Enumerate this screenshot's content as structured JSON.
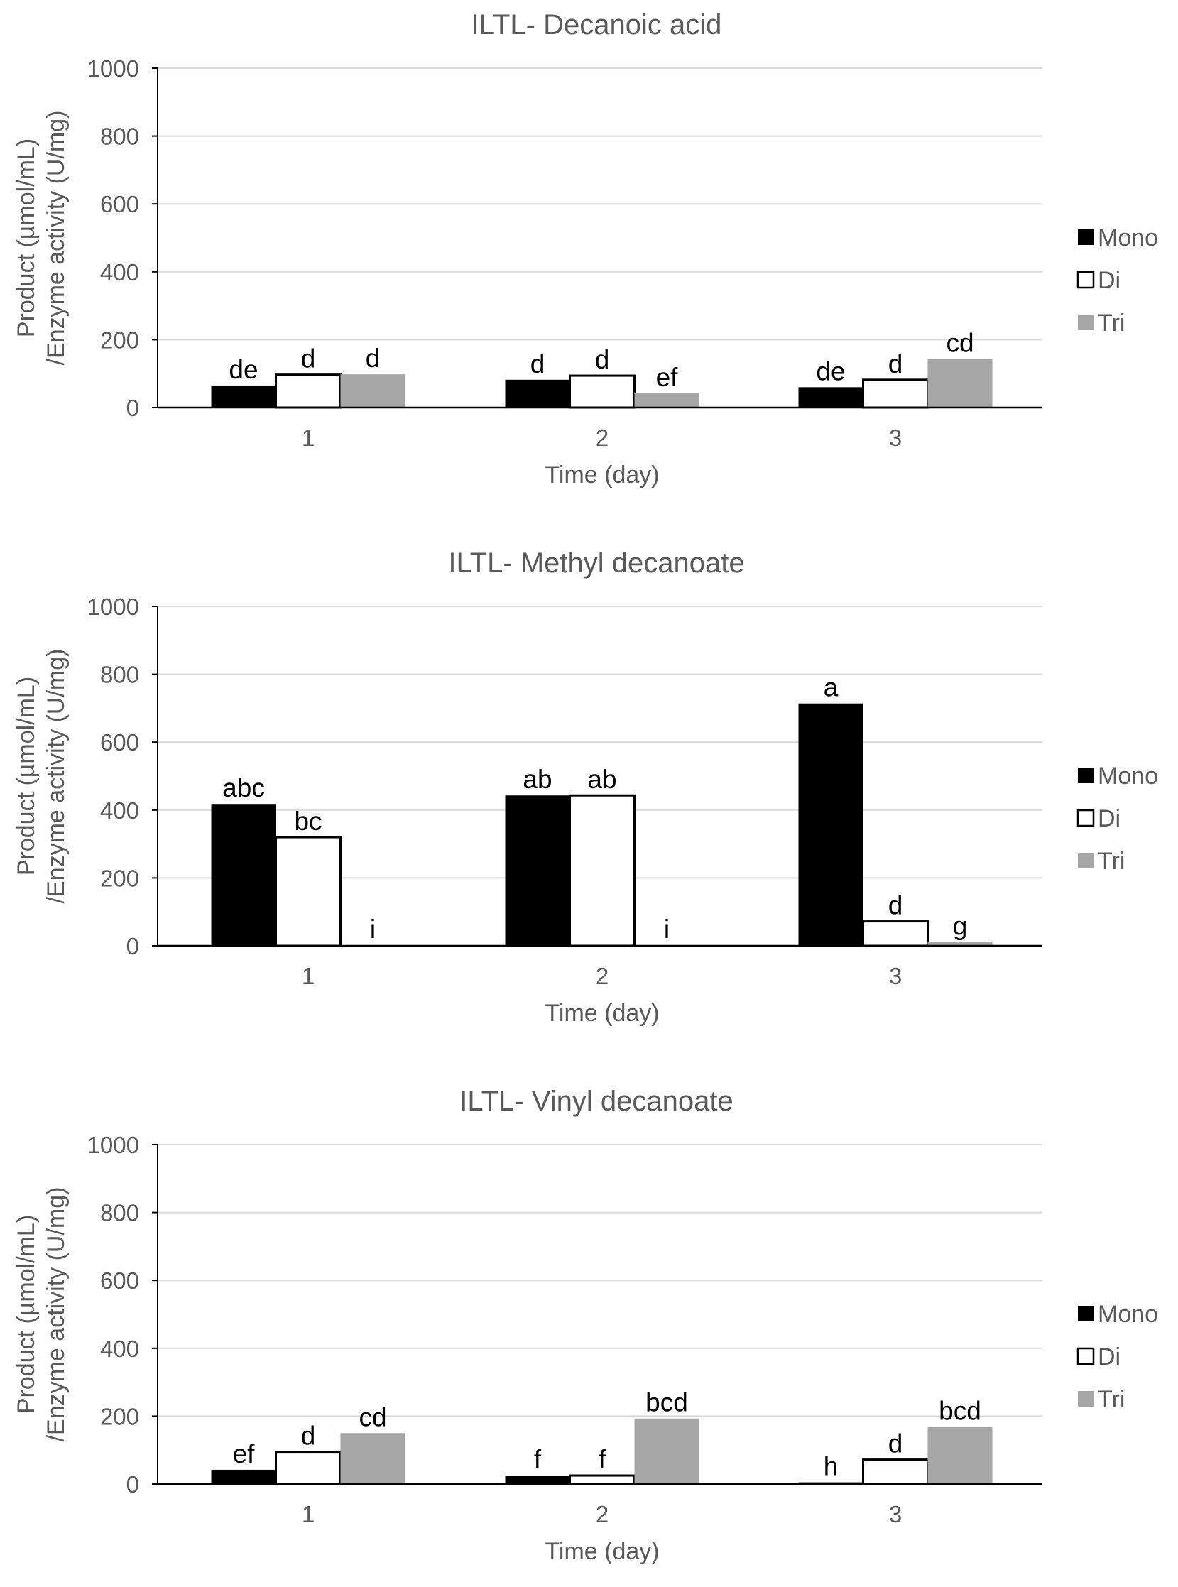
{
  "chart_data": [
    {
      "type": "bar",
      "title": "ILTL- Decanoic acid",
      "xlabel": "Time (day)",
      "ylabel": [
        "Product (µmol/mL)",
        "/Enzyme activity (U/mg)"
      ],
      "ylim": [
        0,
        1000
      ],
      "yticks": [
        0,
        200,
        400,
        600,
        800,
        1000
      ],
      "categories": [
        "1",
        "2",
        "3"
      ],
      "series": [
        {
          "name": "Mono",
          "color": "#000000",
          "values": [
            65,
            82,
            60
          ],
          "labels": [
            "de",
            "d",
            "de"
          ]
        },
        {
          "name": "Di",
          "color": "#ffffff",
          "values": [
            97,
            94,
            82
          ],
          "labels": [
            "d",
            "d",
            "d"
          ]
        },
        {
          "name": "Tri",
          "color": "#a6a6a6",
          "values": [
            98,
            42,
            143
          ],
          "labels": [
            "d",
            "ef",
            "cd"
          ]
        }
      ],
      "legend": "right"
    },
    {
      "type": "bar",
      "title": "ILTL- Methyl decanoate",
      "xlabel": "Time (day)",
      "ylabel": [
        "Product (µmol/mL)",
        "/Enzyme activity (U/mg)"
      ],
      "ylim": [
        0,
        1000
      ],
      "yticks": [
        0,
        200,
        400,
        600,
        800,
        1000
      ],
      "categories": [
        "1",
        "2",
        "3"
      ],
      "series": [
        {
          "name": "Mono",
          "color": "#000000",
          "values": [
            418,
            443,
            714
          ],
          "labels": [
            "abc",
            "ab",
            "a"
          ]
        },
        {
          "name": "Di",
          "color": "#ffffff",
          "values": [
            320,
            443,
            72
          ],
          "labels": [
            "bc",
            "ab",
            "d"
          ]
        },
        {
          "name": "Tri",
          "color": "#a6a6a6",
          "values": [
            2,
            2,
            12
          ],
          "labels": [
            "i",
            "i",
            "g"
          ]
        }
      ],
      "legend": "right"
    },
    {
      "type": "bar",
      "title": "ILTL- Vinyl decanoate",
      "xlabel": "Time (day)",
      "ylabel": [
        "Product (µmol/mL)",
        "/Enzyme activity (U/mg)"
      ],
      "ylim": [
        0,
        1000
      ],
      "yticks": [
        0,
        200,
        400,
        600,
        800,
        1000
      ],
      "categories": [
        "1",
        "2",
        "3"
      ],
      "series": [
        {
          "name": "Mono",
          "color": "#000000",
          "values": [
            42,
            25,
            5
          ],
          "labels": [
            "ef",
            "f",
            "h"
          ]
        },
        {
          "name": "Di",
          "color": "#ffffff",
          "values": [
            95,
            25,
            72
          ],
          "labels": [
            "d",
            "f",
            "d"
          ]
        },
        {
          "name": "Tri",
          "color": "#a6a6a6",
          "values": [
            150,
            193,
            168
          ],
          "labels": [
            "cd",
            "bcd",
            "bcd"
          ]
        }
      ],
      "legend": "right"
    }
  ]
}
